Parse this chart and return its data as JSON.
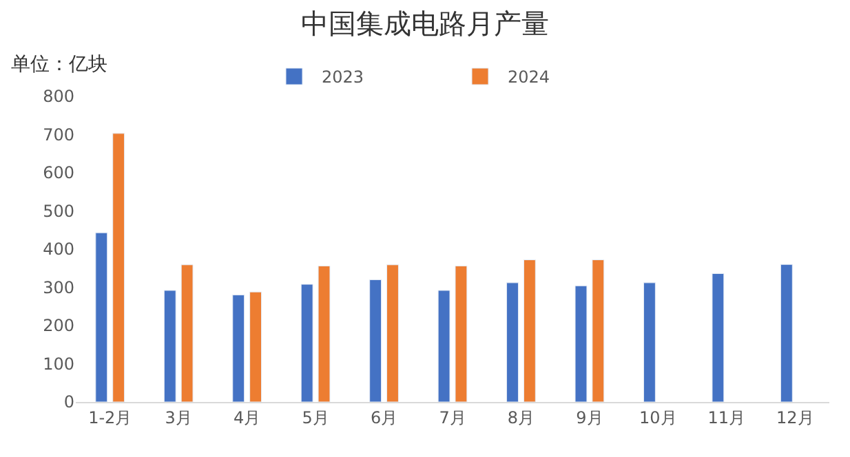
{
  "chart_data": {
    "type": "bar",
    "title": "中国集成电路月产量",
    "ylabel": "单位：亿块",
    "categories": [
      "1-2月",
      "3月",
      "4月",
      "5月",
      "6月",
      "7月",
      "8月",
      "9月",
      "10月",
      "11月",
      "12月"
    ],
    "series": [
      {
        "name": "2023",
        "color": "#4472c4",
        "values": [
          443,
          292,
          280,
          308,
          320,
          292,
          312,
          304,
          312,
          336,
          360
        ]
      },
      {
        "name": "2024",
        "color": "#ed7d31",
        "values": [
          703,
          359,
          288,
          356,
          359,
          356,
          372,
          372,
          null,
          null,
          null
        ]
      }
    ],
    "ylim": [
      0,
      800
    ],
    "yticks": [
      0,
      100,
      200,
      300,
      400,
      500,
      600,
      700,
      800
    ],
    "grid": false,
    "legend": "top"
  }
}
